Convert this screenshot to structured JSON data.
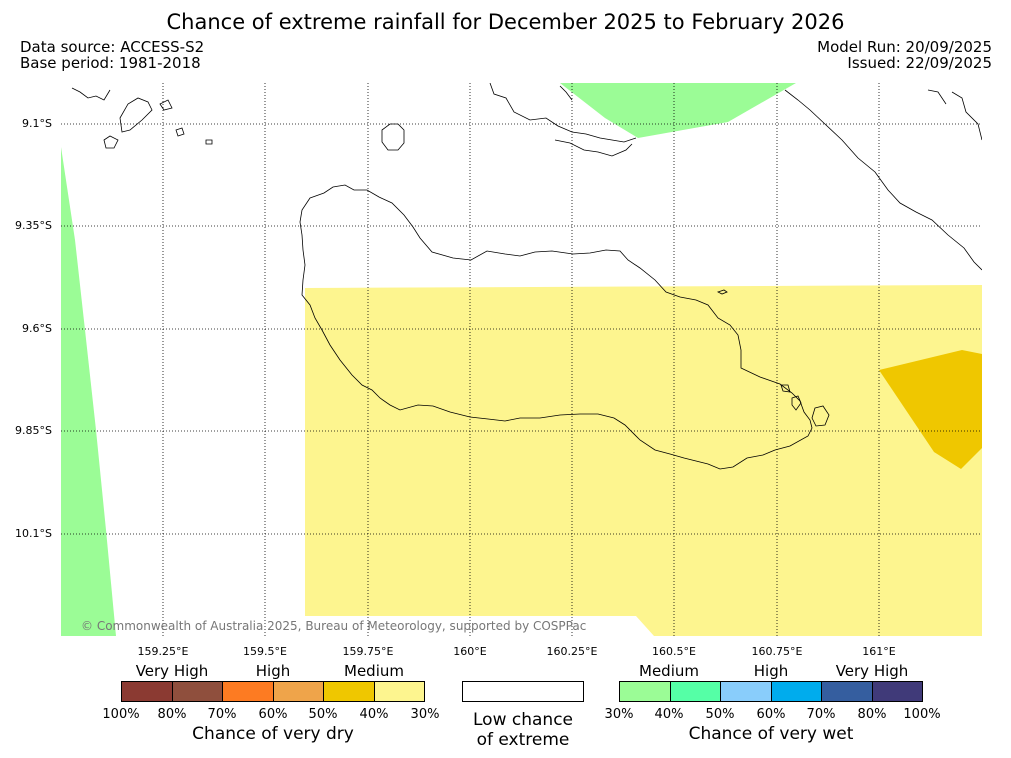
{
  "title": "Chance of extreme rainfall for December 2025 to February 2026",
  "meta": {
    "data_source": "Data source: ACCESS-S2",
    "base_period": "Base period: 1981-2018",
    "model_run": "Model Run: 20/09/2025",
    "issued": "Issued: 22/09/2025"
  },
  "map": {
    "lat_labels": [
      "9.1°S",
      "9.35°S",
      "9.6°S",
      "9.85°S",
      "10.1°S"
    ],
    "lon_labels": [
      "159.25°E",
      "159.5°E",
      "159.75°E",
      "160°E",
      "160.25°E",
      "160.5°E",
      "160.75°E",
      "161°E"
    ],
    "copyright": "© Commonwealth of Australia 2025, Bureau of Meteorology, supported by COSPPac",
    "colors": {
      "medium_wet": "#9bfc96",
      "medium_dry": "#fdf58f",
      "high_dry_50": "#efc700"
    }
  },
  "legend": {
    "dry": {
      "categories": [
        "Very High",
        "High",
        "Medium"
      ],
      "colors": [
        "#8b3a32",
        "#8f4f3d",
        "#fd7b22",
        "#efa44a",
        "#efc700",
        "#fdf58f"
      ],
      "ticks": [
        "100%",
        "80%",
        "70%",
        "60%",
        "50%",
        "40%",
        "30%"
      ],
      "title": "Chance of very dry"
    },
    "neutral": {
      "line1": "Low chance",
      "line2": "of extreme"
    },
    "wet": {
      "categories": [
        "Medium",
        "High",
        "Very High"
      ],
      "colors": [
        "#9bfc96",
        "#55ffa6",
        "#89cdfb",
        "#00aced",
        "#355e9f",
        "#403a79"
      ],
      "ticks": [
        "30%",
        "40%",
        "50%",
        "60%",
        "70%",
        "80%",
        "100%"
      ],
      "title": "Chance of very wet"
    }
  }
}
